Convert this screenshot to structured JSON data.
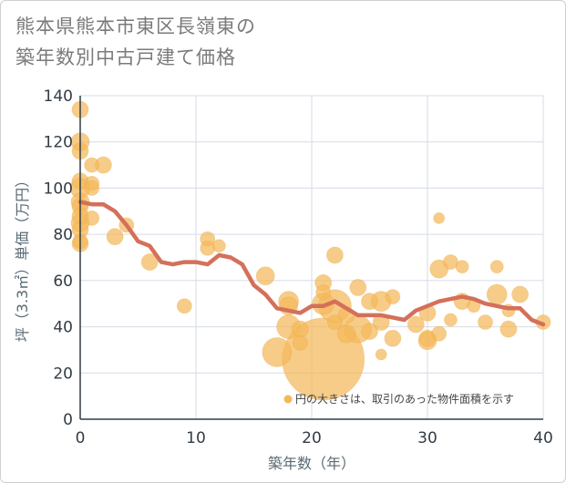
{
  "title": {
    "line1": "熊本県熊本市東区長嶺東の",
    "line2": "築年数別中古戸建て価格"
  },
  "colors": {
    "bubble": "#f4b85a",
    "line": "#d4705a",
    "grid": "#d6dbe6",
    "axis": "#333c44"
  },
  "chart_data": {
    "type": "scatter",
    "xlabel": "築年数（年）",
    "ylabel": "坪（3.3㎡）単価（万円）",
    "xlim": [
      0,
      40
    ],
    "ylim": [
      0,
      140
    ],
    "xticks": [
      0,
      10,
      20,
      30,
      40
    ],
    "yticks": [
      0,
      20,
      40,
      60,
      80,
      100,
      120,
      140
    ],
    "grid": true,
    "note": "円の大きさは、取引のあった物件面積を示す",
    "points": [
      {
        "x": 0,
        "y": 134,
        "s": 9
      },
      {
        "x": 0,
        "y": 120,
        "s": 10
      },
      {
        "x": 0,
        "y": 116,
        "s": 9
      },
      {
        "x": 0,
        "y": 103,
        "s": 9
      },
      {
        "x": 0,
        "y": 100,
        "s": 11
      },
      {
        "x": 0,
        "y": 94,
        "s": 10
      },
      {
        "x": 0,
        "y": 92,
        "s": 9
      },
      {
        "x": 0,
        "y": 88,
        "s": 9
      },
      {
        "x": 0,
        "y": 85,
        "s": 10
      },
      {
        "x": 0,
        "y": 82,
        "s": 9
      },
      {
        "x": 0,
        "y": 77,
        "s": 8
      },
      {
        "x": 0,
        "y": 76,
        "s": 9
      },
      {
        "x": 1,
        "y": 110,
        "s": 8
      },
      {
        "x": 1,
        "y": 102,
        "s": 8
      },
      {
        "x": 1,
        "y": 100,
        "s": 8
      },
      {
        "x": 1,
        "y": 87,
        "s": 8
      },
      {
        "x": 2,
        "y": 110,
        "s": 9
      },
      {
        "x": 3,
        "y": 79,
        "s": 9
      },
      {
        "x": 4,
        "y": 84,
        "s": 8
      },
      {
        "x": 6,
        "y": 68,
        "s": 9
      },
      {
        "x": 9,
        "y": 49,
        "s": 8
      },
      {
        "x": 11,
        "y": 78,
        "s": 8
      },
      {
        "x": 11,
        "y": 74,
        "s": 8
      },
      {
        "x": 12,
        "y": 75,
        "s": 7
      },
      {
        "x": 16,
        "y": 62,
        "s": 10
      },
      {
        "x": 17,
        "y": 29,
        "s": 16
      },
      {
        "x": 18,
        "y": 51,
        "s": 11
      },
      {
        "x": 18,
        "y": 49,
        "s": 10
      },
      {
        "x": 18,
        "y": 40,
        "s": 13
      },
      {
        "x": 19,
        "y": 39,
        "s": 9
      },
      {
        "x": 19,
        "y": 33,
        "s": 8
      },
      {
        "x": 21,
        "y": 59,
        "s": 9
      },
      {
        "x": 21,
        "y": 55,
        "s": 8
      },
      {
        "x": 21,
        "y": 50,
        "s": 12
      },
      {
        "x": 21,
        "y": 26,
        "s": 45
      },
      {
        "x": 22,
        "y": 71,
        "s": 9
      },
      {
        "x": 22,
        "y": 49,
        "s": 18
      },
      {
        "x": 22,
        "y": 42,
        "s": 8
      },
      {
        "x": 23,
        "y": 45,
        "s": 9
      },
      {
        "x": 23,
        "y": 37,
        "s": 10
      },
      {
        "x": 24,
        "y": 57,
        "s": 9
      },
      {
        "x": 24,
        "y": 39,
        "s": 15
      },
      {
        "x": 25,
        "y": 51,
        "s": 9
      },
      {
        "x": 25,
        "y": 38,
        "s": 9
      },
      {
        "x": 26,
        "y": 51,
        "s": 11
      },
      {
        "x": 26,
        "y": 42,
        "s": 9
      },
      {
        "x": 26,
        "y": 28,
        "s": 6
      },
      {
        "x": 27,
        "y": 53,
        "s": 8
      },
      {
        "x": 27,
        "y": 35,
        "s": 9
      },
      {
        "x": 29,
        "y": 41,
        "s": 9
      },
      {
        "x": 30,
        "y": 46,
        "s": 9
      },
      {
        "x": 30,
        "y": 35,
        "s": 9
      },
      {
        "x": 30,
        "y": 34,
        "s": 10
      },
      {
        "x": 31,
        "y": 87,
        "s": 6
      },
      {
        "x": 31,
        "y": 65,
        "s": 10
      },
      {
        "x": 31,
        "y": 37,
        "s": 8
      },
      {
        "x": 32,
        "y": 68,
        "s": 8
      },
      {
        "x": 32,
        "y": 43,
        "s": 7
      },
      {
        "x": 33,
        "y": 66,
        "s": 7
      },
      {
        "x": 33,
        "y": 51,
        "s": 9
      },
      {
        "x": 34,
        "y": 49,
        "s": 7
      },
      {
        "x": 35,
        "y": 42,
        "s": 8
      },
      {
        "x": 36,
        "y": 66,
        "s": 7
      },
      {
        "x": 36,
        "y": 54,
        "s": 11
      },
      {
        "x": 37,
        "y": 47,
        "s": 7
      },
      {
        "x": 37,
        "y": 39,
        "s": 9
      },
      {
        "x": 38,
        "y": 54,
        "s": 9
      },
      {
        "x": 40,
        "y": 42,
        "s": 8
      }
    ],
    "trend": {
      "x": [
        0,
        1,
        2,
        3,
        4,
        5,
        6,
        7,
        8,
        9,
        10,
        11,
        12,
        13,
        14,
        15,
        16,
        17,
        18,
        19,
        20,
        21,
        22,
        23,
        24,
        25,
        26,
        27,
        28,
        29,
        30,
        31,
        32,
        33,
        34,
        35,
        36,
        37,
        38,
        39,
        40
      ],
      "y": [
        94,
        93,
        93,
        90,
        84,
        77,
        75,
        68,
        67,
        68,
        68,
        67,
        71,
        70,
        67,
        58,
        54,
        48,
        47,
        46,
        49,
        49,
        51,
        48,
        45,
        45,
        45,
        44,
        43,
        47,
        49,
        51,
        52,
        53,
        52,
        50,
        49,
        48,
        48,
        43,
        41
      ]
    }
  }
}
